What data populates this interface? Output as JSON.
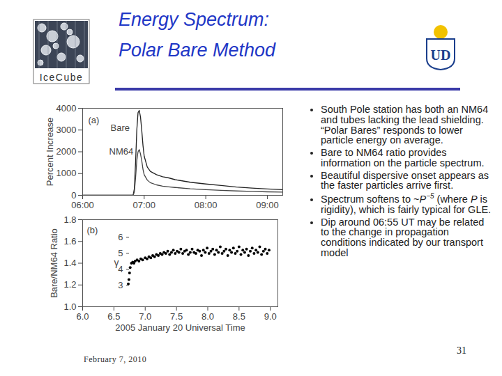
{
  "slide": {
    "title": [
      "Energy Spectrum:",
      "Polar Bare Method"
    ],
    "logo_left": "IceCube",
    "logo_right": "UD",
    "bullets": [
      [
        "South Pole station has both an NM64 and tubes lacking the lead shielding. “Polar Bares” responds to lower particle energy on average."
      ],
      [
        "Bare to NM64 ratio provides information on the particle spectrum."
      ],
      [
        "Beautiful dispersive onset appears as the faster particles arrive first."
      ],
      [
        "Spectrum softens to ~",
        {
          "italic": "P"
        },
        {
          "sup": "−5"
        },
        " (where ",
        {
          "italic": "P"
        },
        " is rigidity), which is fairly typical for GLE."
      ],
      [
        "Dip around 06:55 UT may be related to the change in propagation conditions indicated by our transport model"
      ]
    ],
    "footer": "February 7, 2010",
    "page": "31"
  },
  "chart_data": [
    {
      "type": "line",
      "annotations": [
        "(a)"
      ],
      "ylabel": "Percent Increase",
      "x": [
        6.0,
        6.5,
        6.78,
        6.82,
        6.84,
        6.86,
        6.88,
        6.9,
        6.92,
        6.94,
        6.96,
        6.98,
        7.0,
        7.05,
        7.1,
        7.2,
        7.3,
        7.4,
        7.5,
        7.75,
        8.0,
        8.25,
        8.5,
        8.75,
        9.0,
        9.25
      ],
      "series": [
        {
          "name": "Bare",
          "color": "#222222",
          "values": [
            0,
            0,
            0,
            0,
            300,
            1500,
            3000,
            3800,
            3900,
            3600,
            3000,
            2300,
            1800,
            1300,
            1100,
            950,
            850,
            800,
            720,
            600,
            520,
            450,
            380,
            330,
            290,
            260
          ]
        },
        {
          "name": "NM64",
          "color": "#444444",
          "values": [
            0,
            0,
            0,
            0,
            150,
            800,
            1600,
            2000,
            2100,
            1900,
            1600,
            1200,
            950,
            700,
            580,
            480,
            420,
            390,
            360,
            300,
            260,
            230,
            200,
            180,
            160,
            150
          ]
        }
      ],
      "xlim": [
        6.0,
        9.25
      ],
      "xticks": [
        {
          "value": 6,
          "label": "06:00"
        },
        {
          "value": 7,
          "label": "07:00"
        },
        {
          "value": 8,
          "label": "08:00"
        },
        {
          "value": 9,
          "label": "09:00"
        }
      ],
      "ylim": [
        0,
        4000
      ],
      "yticks": [
        0,
        1000,
        2000,
        3000,
        4000
      ]
    },
    {
      "type": "scatter",
      "annotations": [
        "(b)"
      ],
      "xlabel": "2005 January 20 Universal Time",
      "ylabel": "Bare/NM64 Ratio",
      "y2label": "γ",
      "color": "#000000",
      "marker": "circle",
      "x": [
        6.73,
        6.74,
        6.75,
        6.76,
        6.78,
        6.8,
        6.82,
        6.84,
        6.87,
        6.9,
        6.93,
        6.96,
        7.0,
        7.03,
        7.06,
        7.09,
        7.12,
        7.15,
        7.18,
        7.21,
        7.24,
        7.27,
        7.3,
        7.33,
        7.36,
        7.39,
        7.42,
        7.45,
        7.48,
        7.51,
        7.54,
        7.57,
        7.6,
        7.63,
        7.66,
        7.69,
        7.72,
        7.75,
        7.78,
        7.81,
        7.84,
        7.87,
        7.9,
        7.93,
        7.96,
        7.99,
        8.02,
        8.05,
        8.08,
        8.11,
        8.14,
        8.17,
        8.2,
        8.23,
        8.26,
        8.29,
        8.32,
        8.35,
        8.38,
        8.41,
        8.44,
        8.47,
        8.5,
        8.53,
        8.56,
        8.59,
        8.62,
        8.65,
        8.68,
        8.71,
        8.74,
        8.77,
        8.8,
        8.83,
        8.86,
        8.89,
        8.92,
        8.95,
        8.98
      ],
      "values": [
        1.21,
        1.25,
        1.31,
        1.36,
        1.4,
        1.41,
        1.4,
        1.42,
        1.43,
        1.42,
        1.44,
        1.43,
        1.45,
        1.44,
        1.46,
        1.45,
        1.47,
        1.46,
        1.48,
        1.47,
        1.49,
        1.48,
        1.5,
        1.49,
        1.51,
        1.48,
        1.5,
        1.52,
        1.49,
        1.51,
        1.5,
        1.53,
        1.49,
        1.51,
        1.52,
        1.48,
        1.5,
        1.53,
        1.5,
        1.49,
        1.52,
        1.51,
        1.47,
        1.52,
        1.5,
        1.54,
        1.49,
        1.51,
        1.53,
        1.48,
        1.52,
        1.5,
        1.55,
        1.49,
        1.51,
        1.53,
        1.47,
        1.52,
        1.5,
        1.54,
        1.49,
        1.51,
        1.55,
        1.48,
        1.52,
        1.5,
        1.53,
        1.47,
        1.51,
        1.54,
        1.49,
        1.52,
        1.5,
        1.55,
        1.48,
        1.51,
        1.53,
        1.49,
        1.52
      ],
      "xlim": [
        6.0,
        9.12
      ],
      "xticks": [
        {
          "value": 6,
          "label": "6.0"
        },
        6.5,
        {
          "value": 7,
          "label": "7.0"
        },
        7.5,
        {
          "value": 8,
          "label": "8.0"
        },
        8.5,
        {
          "value": 9,
          "label": "9.0"
        }
      ],
      "ylim": [
        1.0,
        1.8
      ],
      "yticks": [
        {
          "value": 1,
          "label": "1.0"
        },
        1.2,
        1.4,
        1.6,
        1.8
      ],
      "y2lim": [
        1.66,
        7.1
      ],
      "y2ticks": [
        3,
        4,
        5,
        6
      ]
    }
  ]
}
